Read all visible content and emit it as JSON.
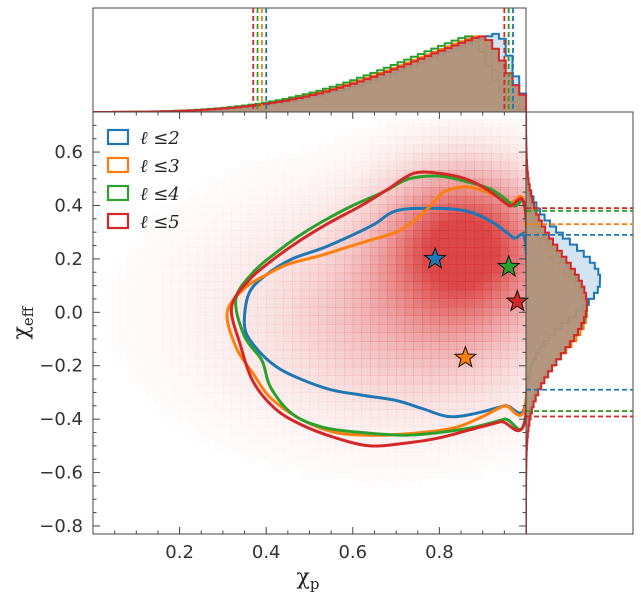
{
  "chart_data": {
    "type": "corner-density",
    "xlabel_main": "χ",
    "xlabel_sub": "p",
    "ylabel_main": "χ",
    "ylabel_sub": "eff",
    "xlim": [
      0.0,
      1.0
    ],
    "ylim": [
      -0.83,
      0.75
    ],
    "xticks": [
      0.2,
      0.4,
      0.6,
      0.8
    ],
    "xtick_labels": [
      "0.2",
      "0.4",
      "0.6",
      "0.8"
    ],
    "yticks": [
      -0.8,
      -0.6,
      -0.4,
      -0.2,
      0.0,
      0.2,
      0.4,
      0.6
    ],
    "ytick_labels": [
      "−0.8",
      "−0.6",
      "−0.4",
      "−0.2",
      "0.0",
      "0.2",
      "0.4",
      "0.6"
    ],
    "legend": {
      "placement": "top-left",
      "entries": [
        {
          "label": "ℓ ≤2",
          "color": "#1f77b4"
        },
        {
          "label": "ℓ ≤3",
          "color": "#ff7f0e"
        },
        {
          "label": "ℓ ≤4",
          "color": "#2ca02c"
        },
        {
          "label": "ℓ ≤5",
          "color": "#d62728"
        }
      ]
    },
    "density": {
      "color": "#d62728",
      "peak": [
        0.86,
        0.26
      ]
    },
    "stars": [
      {
        "series": "ℓ ≤2",
        "x": 0.79,
        "y": 0.2,
        "color": "#1f77b4"
      },
      {
        "series": "ℓ ≤3",
        "x": 0.86,
        "y": -0.17,
        "color": "#ff7f0e"
      },
      {
        "series": "ℓ ≤4",
        "x": 0.96,
        "y": 0.17,
        "color": "#2ca02c"
      },
      {
        "series": "ℓ ≤5",
        "x": 0.98,
        "y": 0.04,
        "color": "#d62728"
      }
    ],
    "contours": [
      {
        "series": "ℓ ≤2",
        "color": "#1f77b4",
        "points": [
          [
            0.35,
            -0.05
          ],
          [
            0.36,
            0.07
          ],
          [
            0.4,
            0.14
          ],
          [
            0.46,
            0.2
          ],
          [
            0.53,
            0.24
          ],
          [
            0.6,
            0.29
          ],
          [
            0.65,
            0.33
          ],
          [
            0.7,
            0.38
          ],
          [
            0.78,
            0.39
          ],
          [
            0.86,
            0.38
          ],
          [
            0.92,
            0.34
          ],
          [
            0.97,
            0.28
          ],
          [
            1.0,
            0.24
          ],
          [
            1.0,
            -0.33
          ],
          [
            0.95,
            -0.35
          ],
          [
            0.88,
            -0.38
          ],
          [
            0.82,
            -0.39
          ],
          [
            0.76,
            -0.36
          ],
          [
            0.7,
            -0.33
          ],
          [
            0.62,
            -0.31
          ],
          [
            0.55,
            -0.29
          ],
          [
            0.48,
            -0.25
          ],
          [
            0.42,
            -0.2
          ],
          [
            0.37,
            -0.12
          ]
        ]
      },
      {
        "series": "ℓ ≤3",
        "color": "#ff7f0e",
        "points": [
          [
            0.31,
            0.0
          ],
          [
            0.35,
            0.09
          ],
          [
            0.4,
            0.14
          ],
          [
            0.45,
            0.18
          ],
          [
            0.52,
            0.21
          ],
          [
            0.58,
            0.24
          ],
          [
            0.64,
            0.27
          ],
          [
            0.7,
            0.3
          ],
          [
            0.74,
            0.34
          ],
          [
            0.78,
            0.4
          ],
          [
            0.81,
            0.45
          ],
          [
            0.86,
            0.47
          ],
          [
            0.91,
            0.45
          ],
          [
            0.96,
            0.41
          ],
          [
            1.0,
            0.37
          ],
          [
            1.0,
            -0.33
          ],
          [
            0.95,
            -0.35
          ],
          [
            0.9,
            -0.39
          ],
          [
            0.84,
            -0.43
          ],
          [
            0.76,
            -0.45
          ],
          [
            0.66,
            -0.46
          ],
          [
            0.56,
            -0.45
          ],
          [
            0.48,
            -0.4
          ],
          [
            0.41,
            -0.32
          ],
          [
            0.37,
            -0.23
          ],
          [
            0.33,
            -0.13
          ]
        ]
      },
      {
        "series": "ℓ ≤4",
        "color": "#2ca02c",
        "points": [
          [
            0.33,
            0.05
          ],
          [
            0.37,
            0.15
          ],
          [
            0.42,
            0.22
          ],
          [
            0.47,
            0.28
          ],
          [
            0.53,
            0.34
          ],
          [
            0.6,
            0.4
          ],
          [
            0.67,
            0.45
          ],
          [
            0.73,
            0.5
          ],
          [
            0.8,
            0.51
          ],
          [
            0.86,
            0.49
          ],
          [
            0.92,
            0.46
          ],
          [
            0.97,
            0.4
          ],
          [
            1.0,
            0.35
          ],
          [
            1.0,
            -0.38
          ],
          [
            0.95,
            -0.4
          ],
          [
            0.88,
            -0.43
          ],
          [
            0.8,
            -0.45
          ],
          [
            0.72,
            -0.46
          ],
          [
            0.62,
            -0.45
          ],
          [
            0.53,
            -0.43
          ],
          [
            0.46,
            -0.38
          ],
          [
            0.41,
            -0.28
          ],
          [
            0.39,
            -0.18
          ],
          [
            0.35,
            -0.09
          ]
        ]
      },
      {
        "series": "ℓ ≤5",
        "color": "#d62728",
        "points": [
          [
            0.32,
            0.02
          ],
          [
            0.36,
            0.12
          ],
          [
            0.41,
            0.19
          ],
          [
            0.47,
            0.26
          ],
          [
            0.54,
            0.33
          ],
          [
            0.62,
            0.4
          ],
          [
            0.68,
            0.46
          ],
          [
            0.74,
            0.52
          ],
          [
            0.8,
            0.52
          ],
          [
            0.86,
            0.5
          ],
          [
            0.91,
            0.46
          ],
          [
            0.96,
            0.4
          ],
          [
            1.0,
            0.36
          ],
          [
            1.0,
            -0.38
          ],
          [
            0.94,
            -0.41
          ],
          [
            0.87,
            -0.44
          ],
          [
            0.8,
            -0.47
          ],
          [
            0.72,
            -0.49
          ],
          [
            0.64,
            -0.5
          ],
          [
            0.56,
            -0.47
          ],
          [
            0.48,
            -0.42
          ],
          [
            0.42,
            -0.36
          ],
          [
            0.37,
            -0.26
          ],
          [
            0.34,
            -0.12
          ]
        ]
      }
    ],
    "marginal_x": {
      "type": "histogram",
      "series": [
        {
          "name": "ℓ ≤2",
          "color": "#1f77b4",
          "peak": 0.93,
          "quantiles": [
            0.4,
            0.97
          ]
        },
        {
          "name": "ℓ ≤3",
          "color": "#ff7f0e",
          "peak": 0.88,
          "quantiles": [
            0.39,
            0.96
          ]
        },
        {
          "name": "ℓ ≤4",
          "color": "#2ca02c",
          "peak": 0.86,
          "quantiles": [
            0.38,
            0.96
          ]
        },
        {
          "name": "ℓ ≤5",
          "color": "#d62728",
          "peak": 0.89,
          "quantiles": [
            0.37,
            0.95
          ]
        }
      ]
    },
    "marginal_y": {
      "type": "histogram",
      "series": [
        {
          "name": "ℓ ≤2",
          "color": "#1f77b4",
          "peak": 0.12,
          "quantiles": [
            -0.29,
            0.29
          ]
        },
        {
          "name": "ℓ ≤3",
          "color": "#ff7f0e",
          "peak": 0.0,
          "quantiles": [
            -0.37,
            0.33
          ]
        },
        {
          "name": "ℓ ≤4",
          "color": "#2ca02c",
          "peak": 0.02,
          "quantiles": [
            -0.37,
            0.38
          ]
        },
        {
          "name": "ℓ ≤5",
          "color": "#d62728",
          "peak": 0.03,
          "quantiles": [
            -0.39,
            0.39
          ]
        }
      ]
    }
  }
}
